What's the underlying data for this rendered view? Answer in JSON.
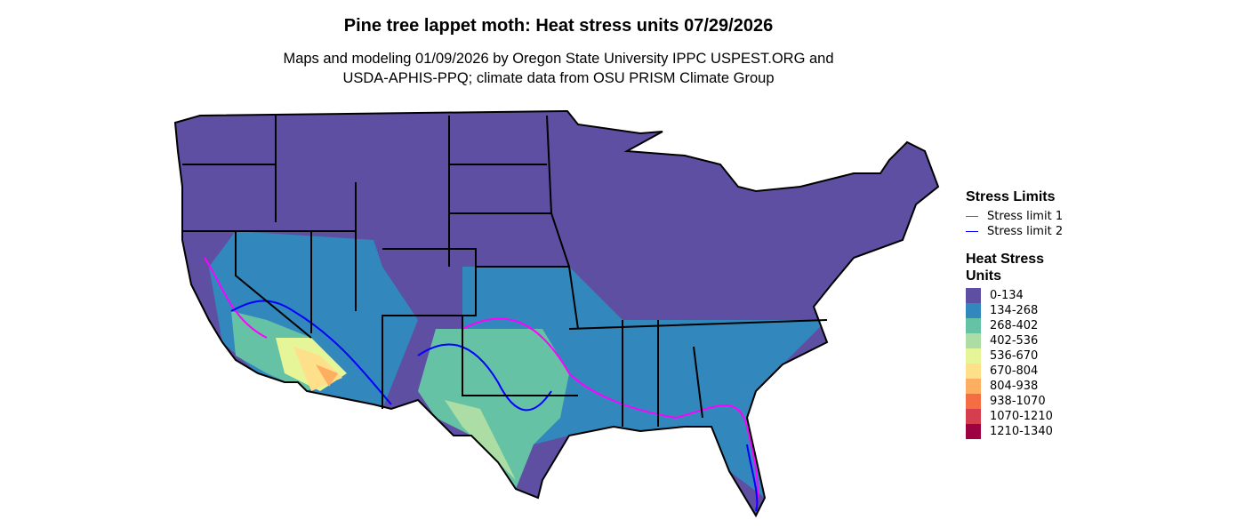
{
  "title": "Pine tree lappet moth: Heat stress units 07/29/2026",
  "subtitle_line1": "Maps and modeling 01/09/2026 by Oregon State University IPPC USPEST.ORG and",
  "subtitle_line2": "USDA-APHIS-PPQ; climate data from OSU PRISM Climate Group",
  "legend": {
    "stress_title": "Stress Limits",
    "stress_limits": [
      {
        "label": "Stress limit 1",
        "color": "#FF00FF"
      },
      {
        "label": "Stress limit 2",
        "color": "#0000FF"
      }
    ],
    "units_title": "Heat Stress Units",
    "bins": [
      {
        "label": "0-134",
        "color": "#5E4FA2"
      },
      {
        "label": "134-268",
        "color": "#3288BD"
      },
      {
        "label": "268-402",
        "color": "#66C2A5"
      },
      {
        "label": "402-536",
        "color": "#ABDDA4"
      },
      {
        "label": "536-670",
        "color": "#E6F598"
      },
      {
        "label": "670-804",
        "color": "#FEE08B"
      },
      {
        "label": "804-938",
        "color": "#FDAE61"
      },
      {
        "label": "938-1070",
        "color": "#F46D43"
      },
      {
        "label": "1070-1210",
        "color": "#D53E4F"
      },
      {
        "label": "1210-1340",
        "color": "#9E0142"
      }
    ]
  }
}
